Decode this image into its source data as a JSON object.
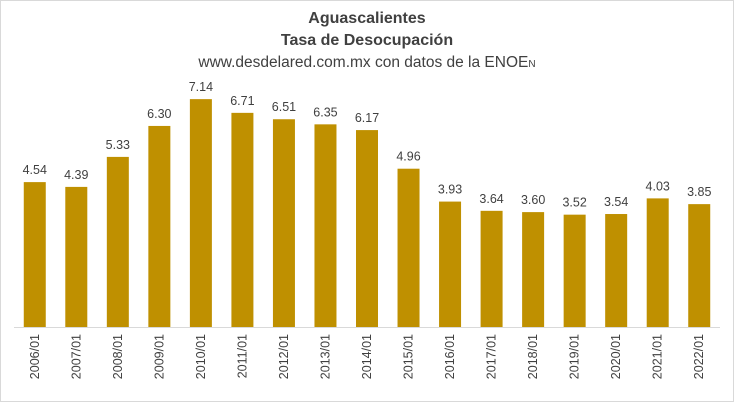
{
  "chart_data": {
    "type": "bar",
    "title": "Aguascalientes",
    "subtitle": "Tasa de Desocupación",
    "source_main": "www.desdelared.com.mx con datos de la ENOE",
    "source_sub": "N",
    "categories": [
      "2006/01",
      "2007/01",
      "2008/01",
      "2009/01",
      "2010/01",
      "2011/01",
      "2012/01",
      "2013/01",
      "2014/01",
      "2015/01",
      "2016/01",
      "2017/01",
      "2018/01",
      "2019/01",
      "2020/01",
      "2021/01",
      "2022/01"
    ],
    "values": [
      4.54,
      4.39,
      5.33,
      6.3,
      7.14,
      6.71,
      6.51,
      6.35,
      6.17,
      4.96,
      3.93,
      3.64,
      3.6,
      3.52,
      3.54,
      4.03,
      3.85
    ],
    "value_labels": [
      "4.54",
      "4.39",
      "5.33",
      "6.30",
      "7.14",
      "6.71",
      "6.51",
      "6.35",
      "6.17",
      "4.96",
      "3.93",
      "3.64",
      "3.60",
      "3.52",
      "3.54",
      "4.03",
      "3.85"
    ],
    "bar_color": "#bf9000",
    "ylim": [
      0,
      7.5
    ],
    "grid": false,
    "legend": "none"
  }
}
